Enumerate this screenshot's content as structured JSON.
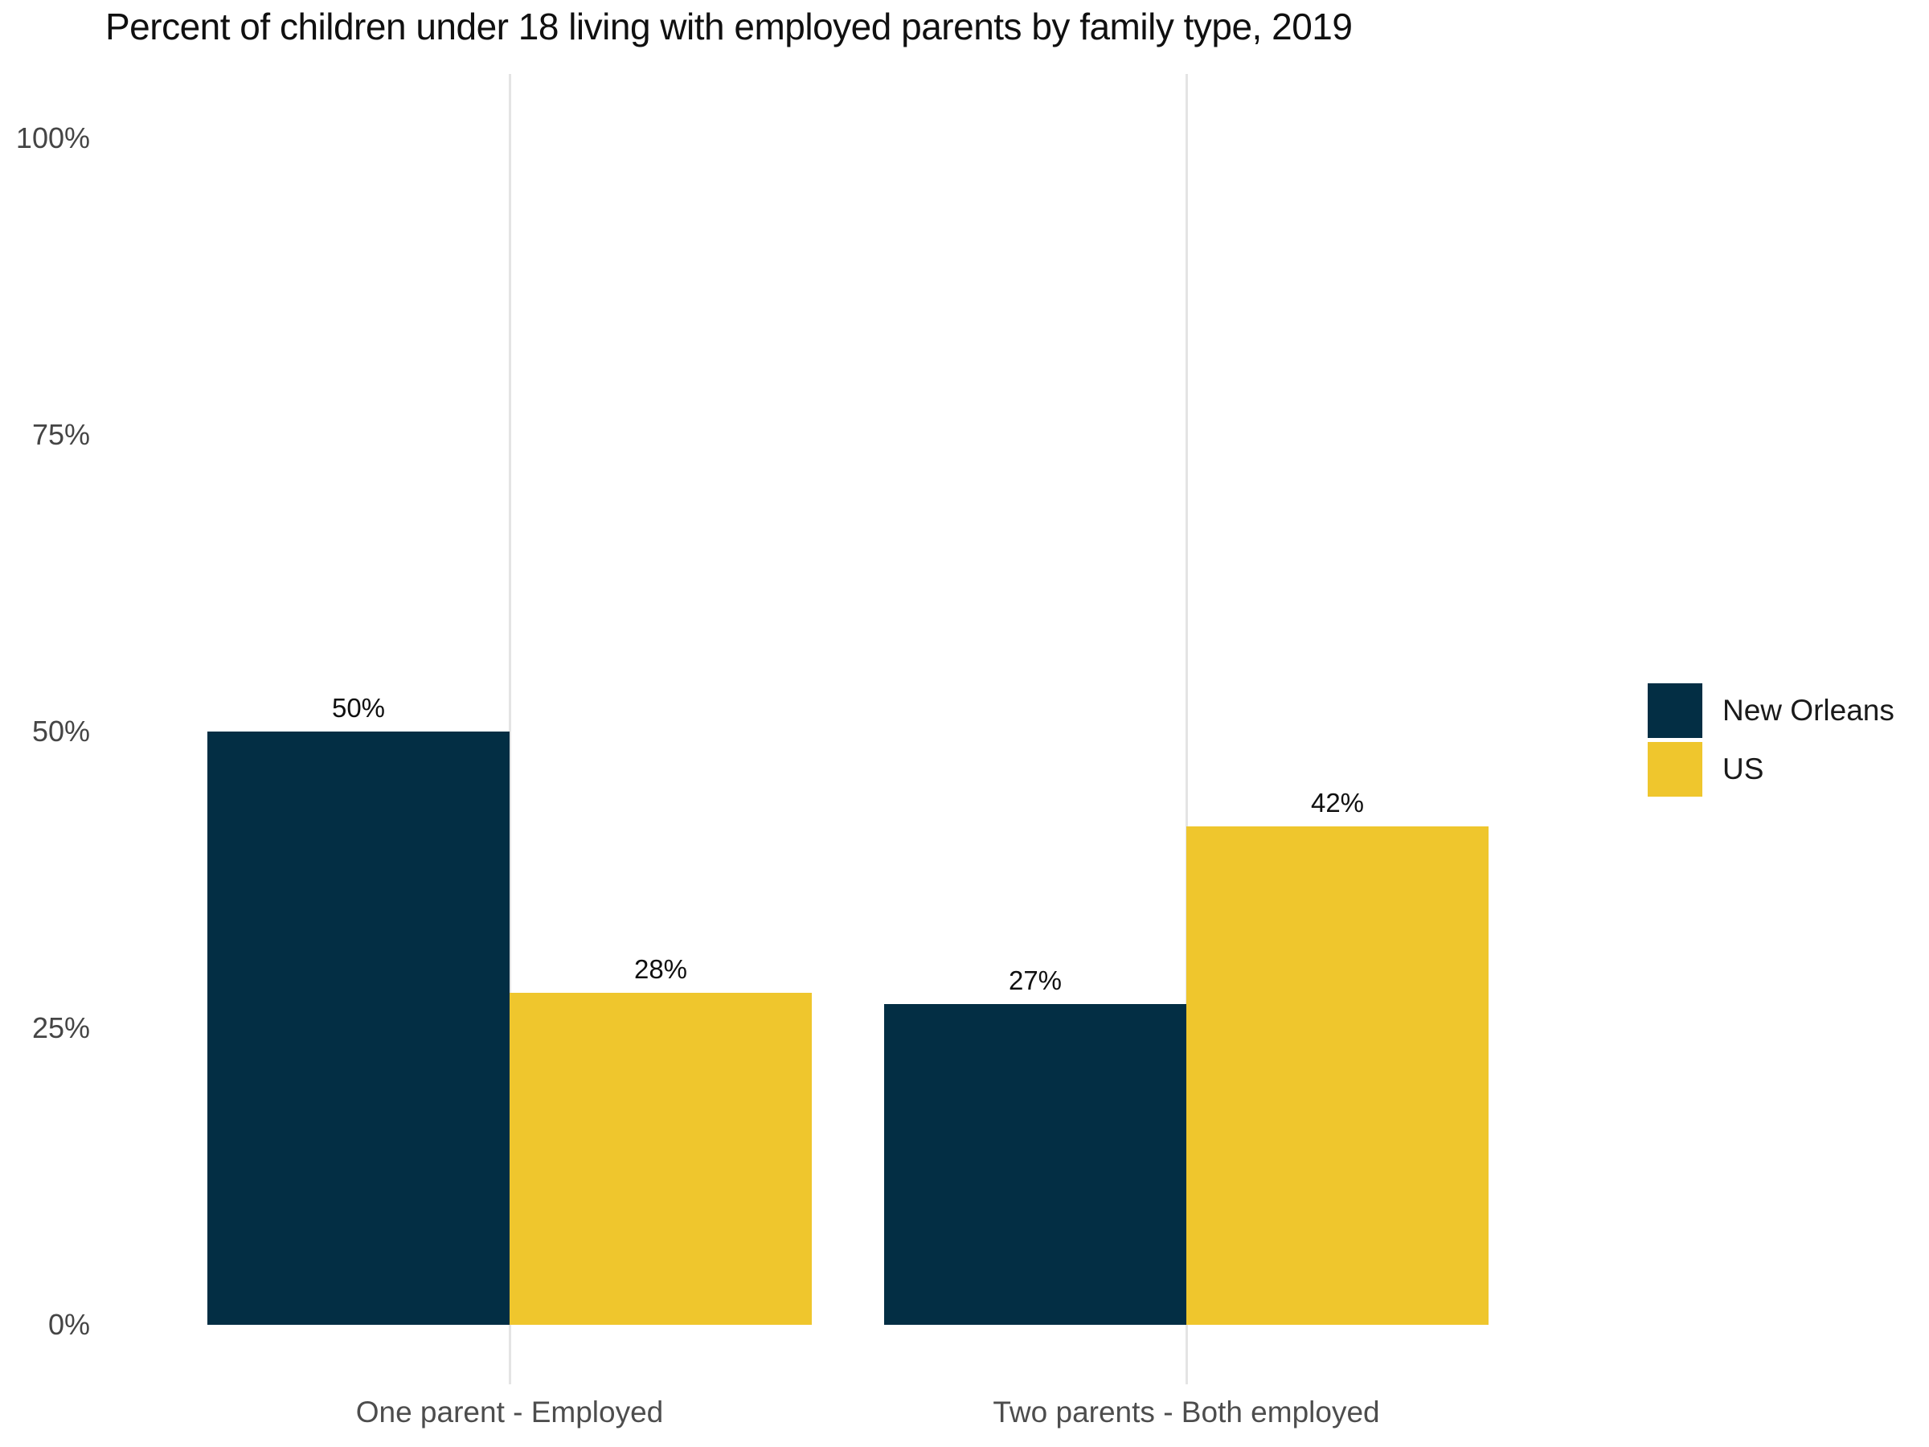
{
  "title": "Percent of children under 18 living with employed parents by family type, 2019",
  "chart_data": {
    "type": "bar",
    "title": "Percent of children under 18 living with employed parents by family type, 2019",
    "categories": [
      "One parent - Employed",
      "Two parents - Both employed"
    ],
    "series": [
      {
        "name": "New Orleans",
        "color": "#032e44",
        "values": [
          50,
          27
        ],
        "value_labels": [
          "50%",
          "27%"
        ]
      },
      {
        "name": "US",
        "color": "#efc62d",
        "values": [
          28,
          42
        ],
        "value_labels": [
          "28%",
          "42%"
        ]
      }
    ],
    "ylim": [
      0,
      100
    ],
    "yticks": {
      "values": [
        0,
        25,
        50,
        75,
        100
      ],
      "labels": [
        "0%",
        "25%",
        "50%",
        "75%",
        "100%"
      ]
    },
    "grid": "vertical gridline at each category center only",
    "legend_position": "right",
    "xlabel": "",
    "ylabel": ""
  },
  "colors": {
    "new_orleans": "#032e44",
    "us": "#efc62d",
    "gridline": "#e4e4e4",
    "axis_text": "#4d4d4d",
    "ytick_text": "#454545",
    "value_text": "#101010",
    "title_text": "#101010",
    "background": "#ffffff"
  }
}
